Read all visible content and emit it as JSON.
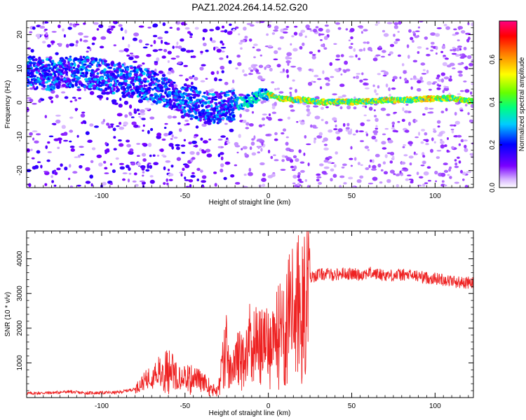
{
  "chart_data": [
    {
      "type": "heatmap",
      "title": "PAZ1.2024.264.14.52.G20",
      "xlabel": "Height of straight line (km)",
      "ylabel": "Frequency (Hz)",
      "xlim": [
        -145,
        123
      ],
      "ylim": [
        -25,
        24
      ],
      "xticks": [
        -100,
        -50,
        0,
        50,
        100
      ],
      "yticks": [
        -20,
        -10,
        0,
        10,
        20
      ],
      "colorbar": {
        "label": "Normalized spectral amplitude",
        "range": [
          0,
          0.78
        ],
        "ticks": [
          0.0,
          0.2,
          0.4,
          0.6
        ]
      },
      "ridge": {
        "x": [
          -140,
          -130,
          -120,
          -110,
          -100,
          -90,
          -80,
          -70,
          -60,
          -50,
          -40,
          -35,
          -30,
          -25,
          -20,
          -15,
          -10,
          -6,
          -3,
          0,
          5,
          10,
          20,
          30,
          40,
          50,
          60,
          70,
          80,
          90,
          100,
          110,
          123
        ],
        "y": [
          9,
          8,
          9,
          9,
          8,
          7,
          6,
          5,
          3,
          1,
          -1,
          -2,
          -1.5,
          -1,
          -0.5,
          0,
          0.8,
          2,
          3,
          2.5,
          1.5,
          1,
          0.8,
          0.2,
          0.2,
          0.2,
          0.3,
          0.8,
          0.7,
          1.0,
          1.2,
          1.3,
          0.3
        ]
      }
    },
    {
      "type": "line",
      "xlabel": "Height of straight line (km)",
      "ylabel": "SNR (10 * v/v)",
      "xlim": [
        -145,
        123
      ],
      "ylim": [
        0,
        4800
      ],
      "xticks": [
        -100,
        -50,
        0,
        50,
        100
      ],
      "yticks": [
        1000,
        2000,
        3000,
        4000
      ],
      "color": "#ee2222",
      "series": [
        {
          "x": [
            -145,
            -130,
            -120,
            -110,
            -100,
            -90,
            -80,
            -75,
            -70,
            -65,
            -60,
            -55,
            -50,
            -45,
            -40,
            -35,
            -30,
            -27,
            -25,
            -22,
            -20,
            -15,
            -10,
            -5,
            0,
            5,
            10,
            15,
            20,
            25,
            30,
            35,
            40,
            45,
            50,
            55,
            60,
            65,
            70,
            75,
            80,
            85,
            90,
            95,
            100,
            105,
            110,
            115,
            123
          ],
          "y": [
            120,
            140,
            170,
            130,
            140,
            150,
            250,
            450,
            650,
            800,
            950,
            750,
            650,
            600,
            500,
            350,
            250,
            1200,
            1600,
            600,
            1100,
            1500,
            1900,
            1700,
            1650,
            2000,
            2500,
            2900,
            3200,
            3450,
            3550,
            3560,
            3540,
            3580,
            3560,
            3540,
            3600,
            3560,
            3530,
            3520,
            3540,
            3520,
            3500,
            3450,
            3430,
            3400,
            3360,
            3320,
            3300
          ]
        }
      ]
    }
  ]
}
